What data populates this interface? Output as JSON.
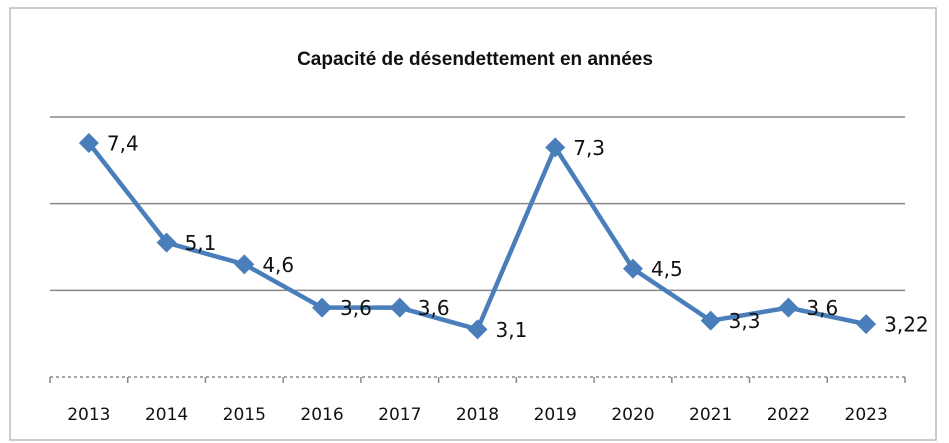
{
  "chart_data": {
    "type": "line",
    "title": "Capacité de désendettement en années",
    "categories": [
      "2013",
      "2014",
      "2015",
      "2016",
      "2017",
      "2018",
      "2019",
      "2020",
      "2021",
      "2022",
      "2023"
    ],
    "series": [
      {
        "name": "Capacité de désendettement",
        "color": "#4a7ebb",
        "values": [
          7.4,
          5.1,
          4.6,
          3.6,
          3.6,
          3.1,
          7.3,
          4.5,
          3.3,
          3.6,
          3.22
        ],
        "value_labels": [
          "7,4",
          "5,1",
          "4,6",
          "3,6",
          "3,6",
          "3,1",
          "7,3",
          "4,5",
          "3,3",
          "3,6",
          "3,22"
        ]
      }
    ],
    "ylim": [
      2,
      8
    ],
    "yticks": [
      2,
      4,
      6,
      8
    ],
    "grid": true
  }
}
